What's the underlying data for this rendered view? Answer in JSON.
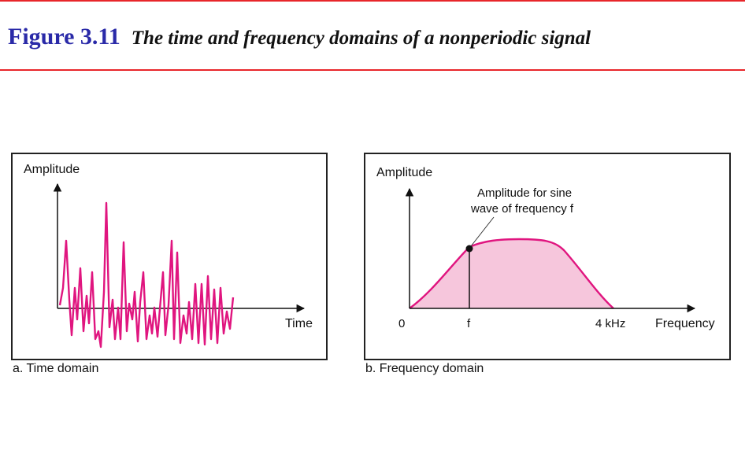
{
  "header": {
    "figure_number": "Figure 3.11",
    "figure_caption": "The time and frequency domains of a nonperiodic signal"
  },
  "colors": {
    "accent_rule": "#e8262a",
    "figure_number": "#2a2aa8",
    "signal": "#e0157f",
    "fill": "#f6c6dc"
  },
  "time_panel": {
    "y_axis_label": "Amplitude",
    "x_axis_label": "Time",
    "caption": "a. Time domain"
  },
  "frequency_panel": {
    "y_axis_label": "Amplitude",
    "x_axis_label": "Frequency",
    "annotation_line1": "Amplitude for sine",
    "annotation_line2": "wave of frequency f",
    "tick_zero": "0",
    "tick_f": "f",
    "tick_max": "4 kHz",
    "caption": "b. Frequency domain"
  }
}
